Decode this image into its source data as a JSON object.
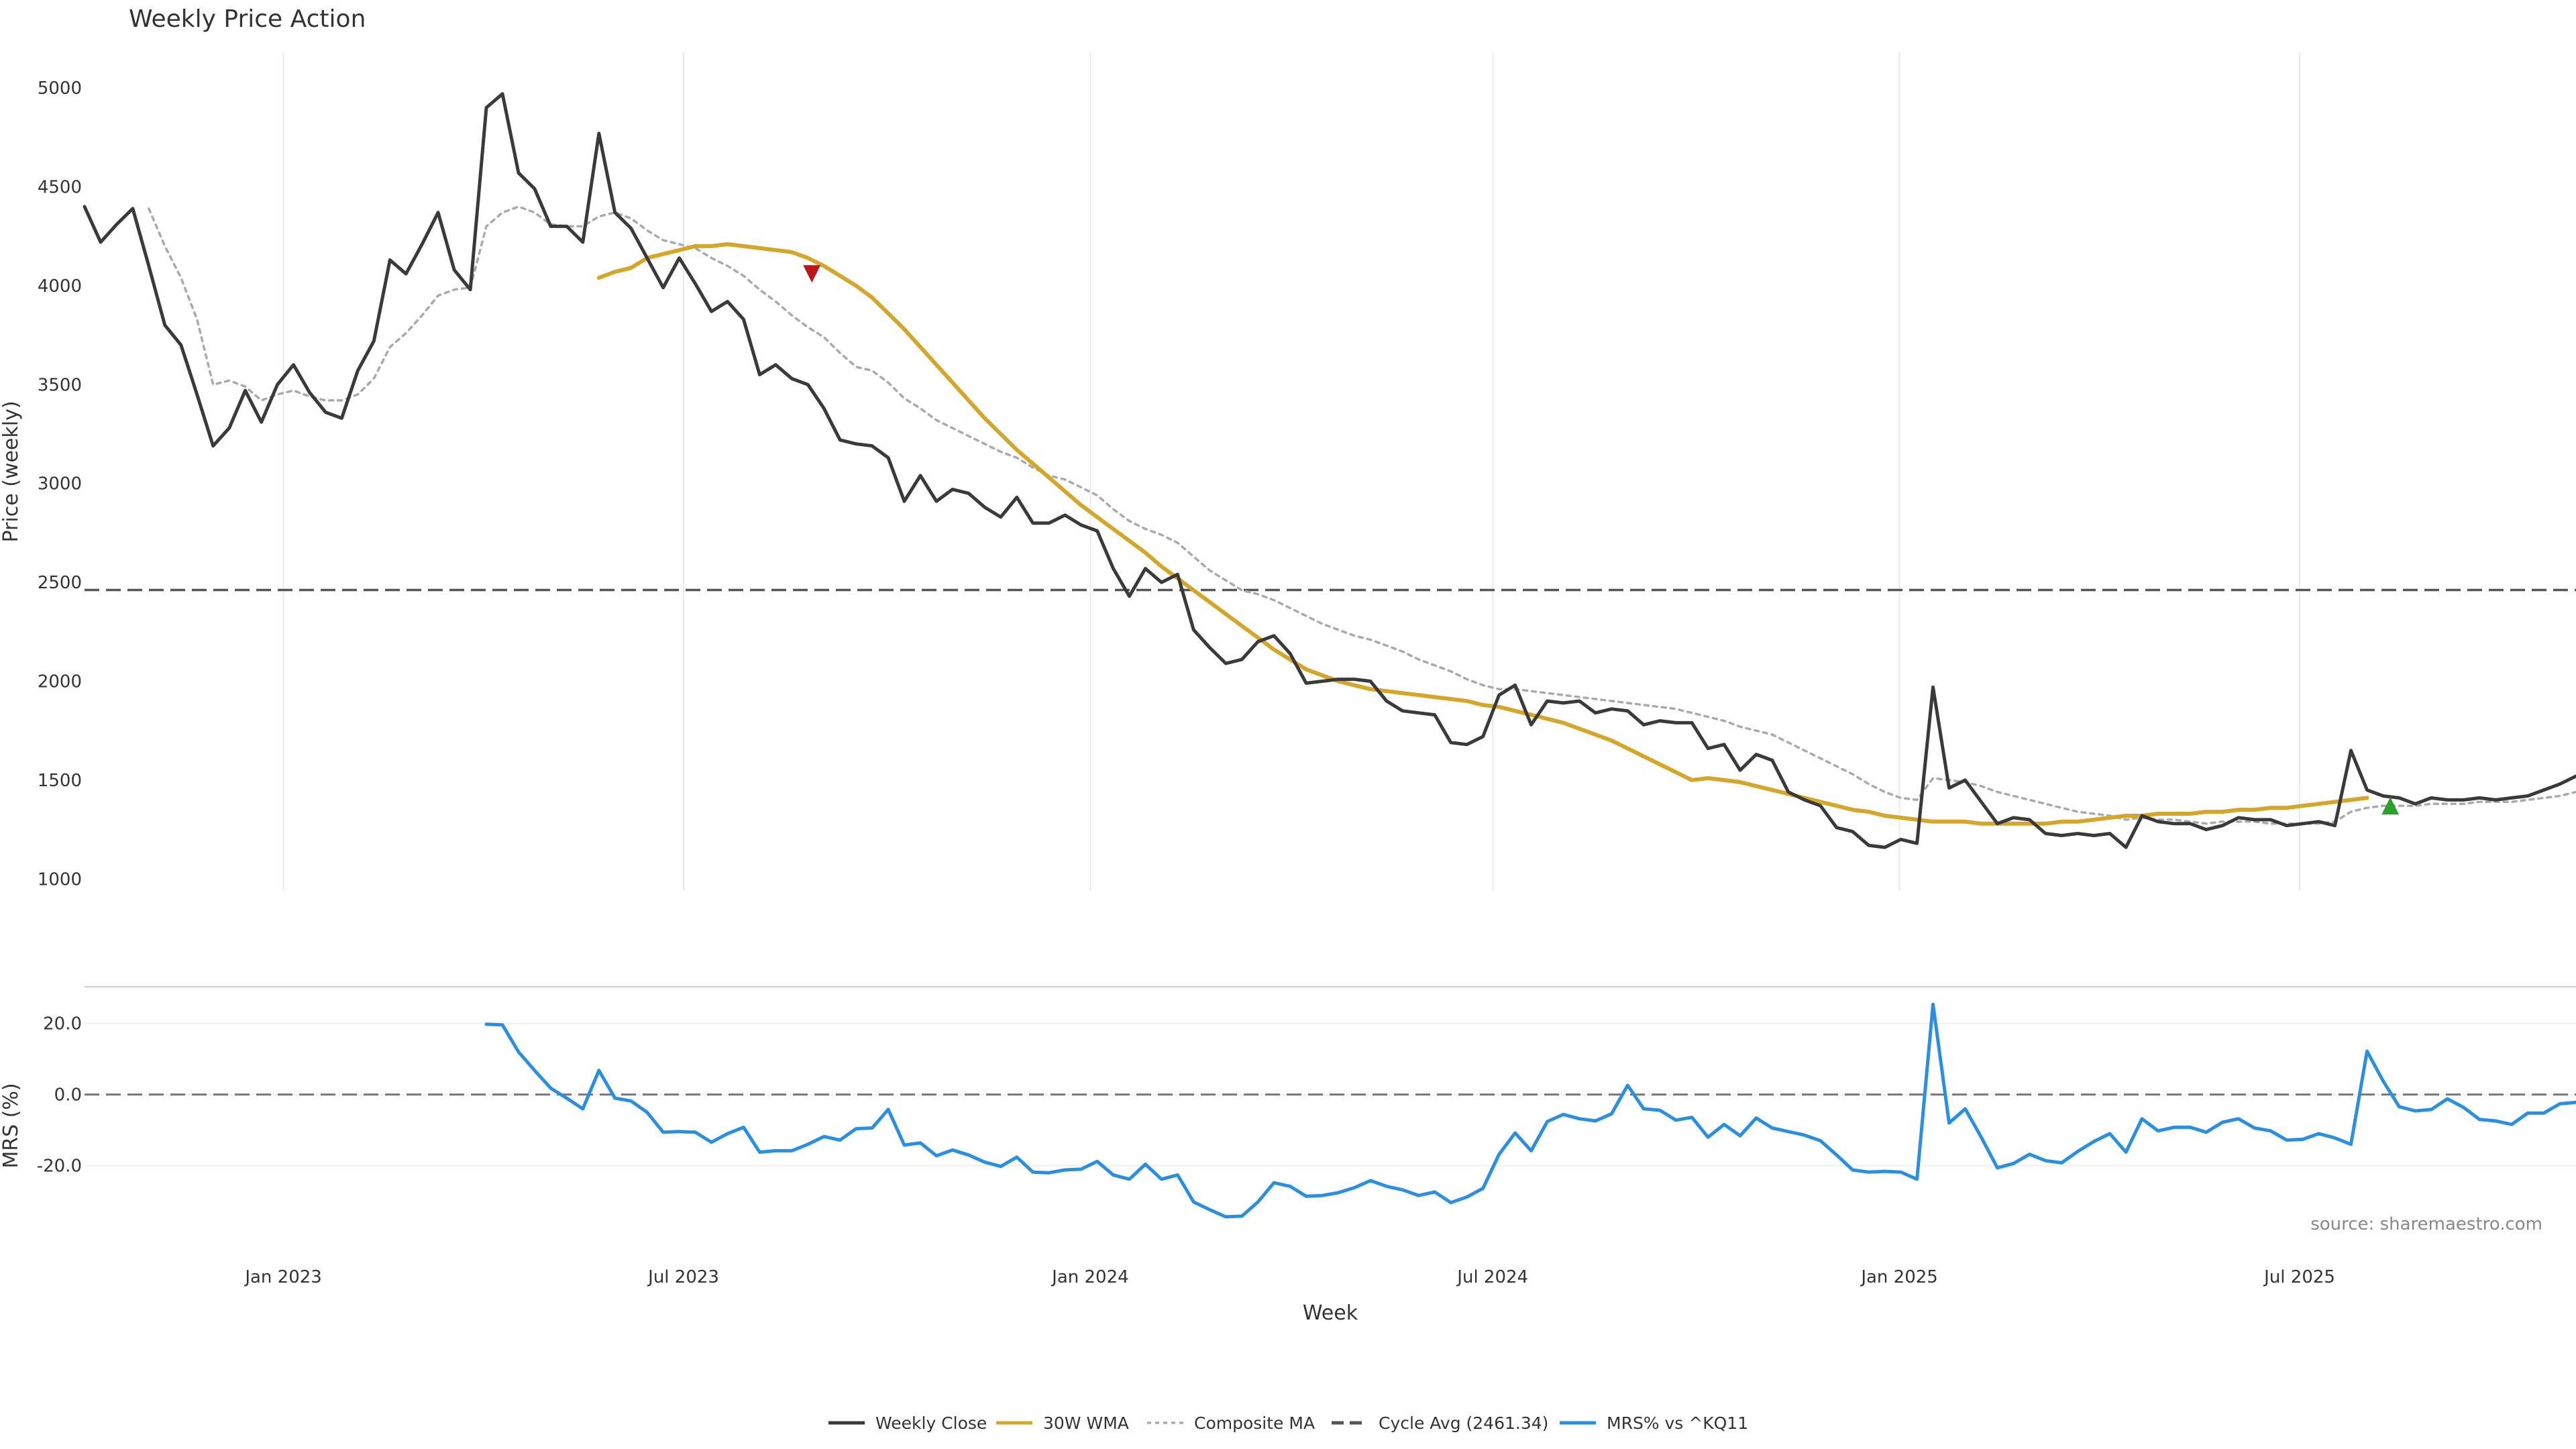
{
  "chart_data": {
    "title": "Weekly Price Action",
    "xlabel": "Week",
    "source": "source: sharemaestro.com",
    "x_start": "2022-10-03",
    "x_end": "2025-11-03",
    "x_ticks": [
      {
        "date": "2023-01-01",
        "label": "Jan 2023"
      },
      {
        "date": "2023-07-01",
        "label": "Jul 2023"
      },
      {
        "date": "2024-01-01",
        "label": "Jan 2024"
      },
      {
        "date": "2024-07-01",
        "label": "Jul 2024"
      },
      {
        "date": "2025-01-01",
        "label": "Jan 2025"
      },
      {
        "date": "2025-07-01",
        "label": "Jul 2025"
      }
    ],
    "price_panel": {
      "type": "line",
      "ylabel": "Price (weekly)",
      "ylim": [
        940,
        5180
      ],
      "y_ticks": [
        1000,
        1500,
        2000,
        2500,
        3000,
        3500,
        4000,
        4500,
        5000
      ],
      "cycle_avg": 2461.34,
      "series": [
        {
          "name": "Weekly Close",
          "color": "#3a3a3a",
          "style": "solid",
          "values": [
            4400,
            4220,
            4310,
            4390,
            4100,
            3800,
            3700,
            3450,
            3190,
            3280,
            3470,
            3310,
            3500,
            3600,
            3460,
            3360,
            3330,
            3570,
            3720,
            4130,
            4060,
            4210,
            4370,
            4080,
            3980,
            4900,
            4970,
            4570,
            4490,
            4300,
            4300,
            4220,
            4770,
            4370,
            4290,
            4140,
            3990,
            4140,
            4010,
            3870,
            3920,
            3830,
            3550,
            3600,
            3530,
            3500,
            3380,
            3220,
            3200,
            3190,
            3130,
            2910,
            3040,
            2910,
            2970,
            2950,
            2880,
            2830,
            2930,
            2800,
            2800,
            2840,
            2790,
            2760,
            2570,
            2430,
            2570,
            2500,
            2540,
            2260,
            2170,
            2090,
            2110,
            2200,
            2230,
            2140,
            1990,
            2000,
            2010,
            2010,
            2000,
            1900,
            1850,
            1840,
            1830,
            1690,
            1680,
            1720,
            1930,
            1980,
            1780,
            1900,
            1890,
            1900,
            1840,
            1860,
            1850,
            1780,
            1800,
            1790,
            1790,
            1660,
            1680,
            1550,
            1630,
            1600,
            1440,
            1400,
            1370,
            1260,
            1240,
            1170,
            1160,
            1200,
            1180,
            1970,
            1460,
            1500,
            1390,
            1280,
            1310,
            1300,
            1230,
            1220,
            1230,
            1220,
            1230,
            1160,
            1320,
            1290,
            1280,
            1280,
            1250,
            1270,
            1310,
            1300,
            1300,
            1270,
            1280,
            1290,
            1270,
            1650,
            1450,
            1420,
            1410,
            1380,
            1410,
            1400,
            1400,
            1410,
            1400,
            1410,
            1420,
            1450,
            1480,
            1520
          ]
        },
        {
          "name": "30W WMA",
          "color": "#d4a62a",
          "style": "solid",
          "values": [
            null,
            null,
            null,
            null,
            null,
            null,
            null,
            null,
            null,
            null,
            null,
            null,
            null,
            null,
            null,
            null,
            null,
            null,
            null,
            null,
            null,
            null,
            null,
            null,
            null,
            null,
            null,
            null,
            null,
            null,
            null,
            null,
            4040,
            4070,
            4090,
            4140,
            4160,
            4180,
            4200,
            4200,
            4210,
            4200,
            4190,
            4180,
            4170,
            4140,
            4100,
            4050,
            4000,
            3940,
            3860,
            3780,
            3690,
            3600,
            3510,
            3420,
            3330,
            3250,
            3170,
            3100,
            3030,
            2960,
            2890,
            2830,
            2770,
            2710,
            2650,
            2580,
            2520,
            2460,
            2400,
            2340,
            2280,
            2220,
            2160,
            2110,
            2060,
            2030,
            2000,
            1980,
            1960,
            1950,
            1940,
            1930,
            1920,
            1910,
            1900,
            1880,
            1870,
            1850,
            1830,
            1810,
            1790,
            1760,
            1730,
            1700,
            1660,
            1620,
            1580,
            1540,
            1500,
            1510,
            1500,
            1490,
            1470,
            1450,
            1430,
            1410,
            1390,
            1370,
            1350,
            1340,
            1320,
            1310,
            1300,
            1290,
            1290,
            1290,
            1280,
            1280,
            1280,
            1280,
            1280,
            1290,
            1290,
            1300,
            1310,
            1320,
            1320,
            1330,
            1330,
            1330,
            1340,
            1340,
            1350,
            1350,
            1360,
            1360,
            1370,
            1380,
            1390,
            1400,
            1410
          ]
        },
        {
          "name": "Composite MA",
          "color": "#aaaaaa",
          "style": "dotted",
          "values": [
            null,
            null,
            null,
            null,
            4390,
            4200,
            4040,
            3830,
            3500,
            3520,
            3490,
            3420,
            3450,
            3470,
            3440,
            3420,
            3420,
            3450,
            3530,
            3690,
            3760,
            3850,
            3950,
            3980,
            3990,
            4300,
            4370,
            4400,
            4370,
            4310,
            4300,
            4300,
            4350,
            4370,
            4340,
            4280,
            4230,
            4210,
            4190,
            4140,
            4100,
            4050,
            3980,
            3920,
            3850,
            3790,
            3740,
            3660,
            3590,
            3570,
            3510,
            3430,
            3380,
            3320,
            3280,
            3240,
            3200,
            3160,
            3130,
            3080,
            3040,
            3020,
            2980,
            2940,
            2870,
            2810,
            2770,
            2740,
            2700,
            2630,
            2560,
            2510,
            2460,
            2440,
            2410,
            2370,
            2330,
            2290,
            2260,
            2230,
            2210,
            2180,
            2150,
            2110,
            2080,
            2050,
            2010,
            1980,
            1960,
            1960,
            1950,
            1940,
            1930,
            1920,
            1910,
            1900,
            1890,
            1880,
            1870,
            1860,
            1840,
            1820,
            1800,
            1770,
            1750,
            1730,
            1690,
            1650,
            1610,
            1570,
            1530,
            1480,
            1440,
            1410,
            1400,
            1510,
            1500,
            1490,
            1470,
            1440,
            1420,
            1400,
            1380,
            1360,
            1340,
            1330,
            1320,
            1300,
            1310,
            1300,
            1300,
            1290,
            1280,
            1290,
            1290,
            1290,
            1280,
            1280,
            1280,
            1280,
            1290,
            1340,
            1360,
            1370,
            1370,
            1370,
            1380,
            1380,
            1380,
            1390,
            1390,
            1390,
            1400,
            1410,
            1420,
            1440
          ]
        }
      ],
      "markers": [
        {
          "type": "sell",
          "symbol": "▼",
          "color": "#c0161b",
          "date": "2023-08-28",
          "value": 4060
        },
        {
          "type": "buy",
          "symbol": "▲",
          "color": "#2ca02c",
          "date": "2025-08-11",
          "value": 1370
        }
      ]
    },
    "mrs_panel": {
      "type": "line",
      "ylabel": "MRS (%)",
      "ylim": [
        -38,
        29
      ],
      "y_ticks": [
        20,
        0,
        -20
      ],
      "y_tick_labels": [
        "20.0",
        "0.0",
        "-20.0"
      ],
      "zero_line": 0,
      "series": {
        "name": "MRS% vs ^KQ11",
        "color": "#2a8fe0",
        "values": [
          null,
          null,
          null,
          null,
          null,
          null,
          null,
          null,
          null,
          null,
          null,
          null,
          null,
          null,
          null,
          null,
          null,
          null,
          null,
          null,
          null,
          null,
          null,
          null,
          null,
          19.8,
          19.6,
          12,
          6.8,
          1.8,
          -1,
          -4,
          6.8,
          -1,
          -1.8,
          -5,
          -10.6,
          -10.4,
          -10.6,
          -13.4,
          -11,
          -9.2,
          -16.2,
          -15.8,
          -15.8,
          -14,
          -11.8,
          -12.8,
          -9.6,
          -9.4,
          -4.2,
          -14.2,
          -13.6,
          -17.2,
          -15.6,
          -17,
          -19,
          -20.2,
          -17.6,
          -21.8,
          -22,
          -21.2,
          -21,
          -18.8,
          -22.6,
          -23.8,
          -19.6,
          -23.8,
          -22.6,
          -30.2,
          -32.4,
          -34.4,
          -34.2,
          -30.2,
          -24.8,
          -25.8,
          -28.6,
          -28.4,
          -27.6,
          -26.2,
          -24.2,
          -25.8,
          -26.8,
          -28.4,
          -27.4,
          -30.4,
          -28.8,
          -26.4,
          -16.8,
          -10.8,
          -15.8,
          -7.6,
          -5.6,
          -6.8,
          -7.4,
          -5.4,
          2.6,
          -4,
          -4.4,
          -7.2,
          -6.4,
          -12,
          -8.4,
          -11.6,
          -6.6,
          -9.4,
          -10.4,
          -11.4,
          -13,
          -17,
          -21.2,
          -21.8,
          -21.6,
          -21.8,
          -23.8,
          25.4,
          -8,
          -4,
          -12,
          -20.6,
          -19.4,
          -16.8,
          -18.6,
          -19.2,
          -16,
          -13.2,
          -11,
          -16.2,
          -6.8,
          -10.2,
          -9.2,
          -9.2,
          -10.6,
          -7.8,
          -6.8,
          -9.4,
          -10.2,
          -12.8,
          -12.6,
          -11,
          -12.2,
          -14,
          12.2,
          3.8,
          -3.4,
          -4.6,
          -4.2,
          -1.2,
          -3.6,
          -7,
          -7.4,
          -8.4,
          -5.2,
          -5.2,
          -2.6,
          -2.2,
          -2.4
        ]
      }
    },
    "legend": [
      {
        "label": "Weekly Close",
        "color": "#3a3a3a",
        "style": "solid"
      },
      {
        "label": "30W WMA",
        "color": "#d4a62a",
        "style": "solid"
      },
      {
        "label": "Composite MA",
        "color": "#aaaaaa",
        "style": "dotted"
      },
      {
        "label": "Cycle Avg (2461.34)",
        "color": "#555555",
        "style": "dashed"
      },
      {
        "label": "MRS% vs ^KQ11",
        "color": "#2a8fe0",
        "style": "solid"
      }
    ]
  }
}
